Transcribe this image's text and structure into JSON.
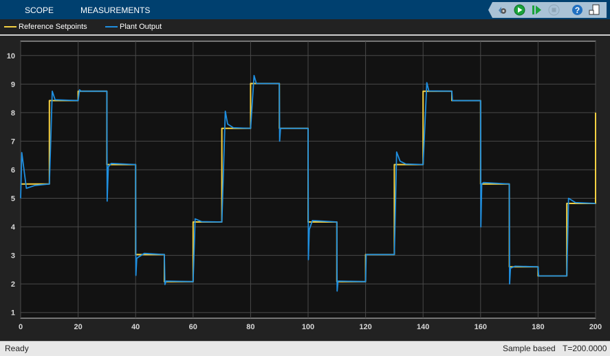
{
  "toolbar": {
    "tabs": [
      "SCOPE",
      "MEASUREMENTS"
    ],
    "icons": [
      "settings-icon",
      "run-icon",
      "step-forward-icon",
      "stop-icon",
      "help-icon",
      "undock-icon"
    ]
  },
  "legend": {
    "entries": [
      {
        "label": "Reference Setpoints",
        "color": "#f5d142"
      },
      {
        "label": "Plant Output",
        "color": "#1f8fe0"
      }
    ]
  },
  "status": {
    "left": "Ready",
    "mode": "Sample based",
    "time": "T=200.0000"
  },
  "chart_data": {
    "type": "line",
    "title": "",
    "xlabel": "",
    "ylabel": "",
    "xlim": [
      0,
      200
    ],
    "ylim": [
      0.8,
      10.5
    ],
    "xticks": [
      0,
      20,
      40,
      60,
      80,
      100,
      120,
      140,
      160,
      180,
      200
    ],
    "yticks": [
      1,
      2,
      3,
      4,
      5,
      6,
      7,
      8,
      9,
      10
    ],
    "grid": true,
    "background": "#121212",
    "series": [
      {
        "name": "Reference Setpoints",
        "color": "#f5d142",
        "step": true,
        "points": [
          [
            0,
            5.5
          ],
          [
            10,
            8.42
          ],
          [
            20,
            8.75
          ],
          [
            30,
            6.18
          ],
          [
            40,
            3.03
          ],
          [
            50,
            2.08
          ],
          [
            60,
            4.17
          ],
          [
            70,
            7.45
          ],
          [
            80,
            9.02
          ],
          [
            90,
            7.45
          ],
          [
            100,
            4.17
          ],
          [
            110,
            2.08
          ],
          [
            120,
            3.03
          ],
          [
            130,
            6.18
          ],
          [
            140,
            8.75
          ],
          [
            150,
            8.42
          ],
          [
            160,
            5.5
          ],
          [
            170,
            2.6
          ],
          [
            180,
            2.28
          ],
          [
            190,
            4.82
          ],
          [
            200,
            8.0
          ]
        ]
      },
      {
        "name": "Plant Output",
        "color": "#1f8fe0",
        "step": false,
        "points": [
          [
            0,
            5.0
          ],
          [
            0.4,
            6.6
          ],
          [
            2,
            5.35
          ],
          [
            5,
            5.45
          ],
          [
            10,
            5.5
          ],
          [
            11,
            8.75
          ],
          [
            12,
            8.45
          ],
          [
            20,
            8.42
          ],
          [
            20.5,
            8.8
          ],
          [
            21,
            8.75
          ],
          [
            30,
            8.75
          ],
          [
            30.1,
            4.9
          ],
          [
            30.5,
            6.1
          ],
          [
            31.5,
            6.22
          ],
          [
            40,
            6.18
          ],
          [
            40.1,
            2.3
          ],
          [
            40.4,
            2.9
          ],
          [
            43,
            3.07
          ],
          [
            50,
            3.03
          ],
          [
            50.2,
            1.98
          ],
          [
            50.6,
            2.1
          ],
          [
            60,
            2.08
          ],
          [
            60.7,
            4.28
          ],
          [
            63,
            4.18
          ],
          [
            70,
            4.17
          ],
          [
            71.2,
            8.05
          ],
          [
            72,
            7.6
          ],
          [
            74,
            7.47
          ],
          [
            80,
            7.45
          ],
          [
            81.2,
            9.3
          ],
          [
            82,
            9.02
          ],
          [
            90,
            9.02
          ],
          [
            90.1,
            7.0
          ],
          [
            90.4,
            7.45
          ],
          [
            100,
            7.45
          ],
          [
            100.1,
            2.85
          ],
          [
            100.4,
            3.9
          ],
          [
            101.5,
            4.22
          ],
          [
            110,
            4.17
          ],
          [
            110.1,
            1.75
          ],
          [
            110.4,
            2.1
          ],
          [
            120,
            2.08
          ],
          [
            120.2,
            3.03
          ],
          [
            130,
            3.03
          ],
          [
            130.8,
            6.62
          ],
          [
            132,
            6.3
          ],
          [
            134,
            6.2
          ],
          [
            140,
            6.18
          ],
          [
            141.3,
            9.05
          ],
          [
            142,
            8.76
          ],
          [
            150,
            8.75
          ],
          [
            150.2,
            8.42
          ],
          [
            160,
            8.42
          ],
          [
            160.1,
            4.0
          ],
          [
            160.4,
            5.5
          ],
          [
            161,
            5.55
          ],
          [
            170,
            5.5
          ],
          [
            170.1,
            2.0
          ],
          [
            170.4,
            2.55
          ],
          [
            172,
            2.62
          ],
          [
            180,
            2.6
          ],
          [
            180.2,
            2.28
          ],
          [
            190,
            2.28
          ],
          [
            190.6,
            5.0
          ],
          [
            193,
            4.85
          ],
          [
            200,
            4.82
          ]
        ]
      }
    ]
  }
}
